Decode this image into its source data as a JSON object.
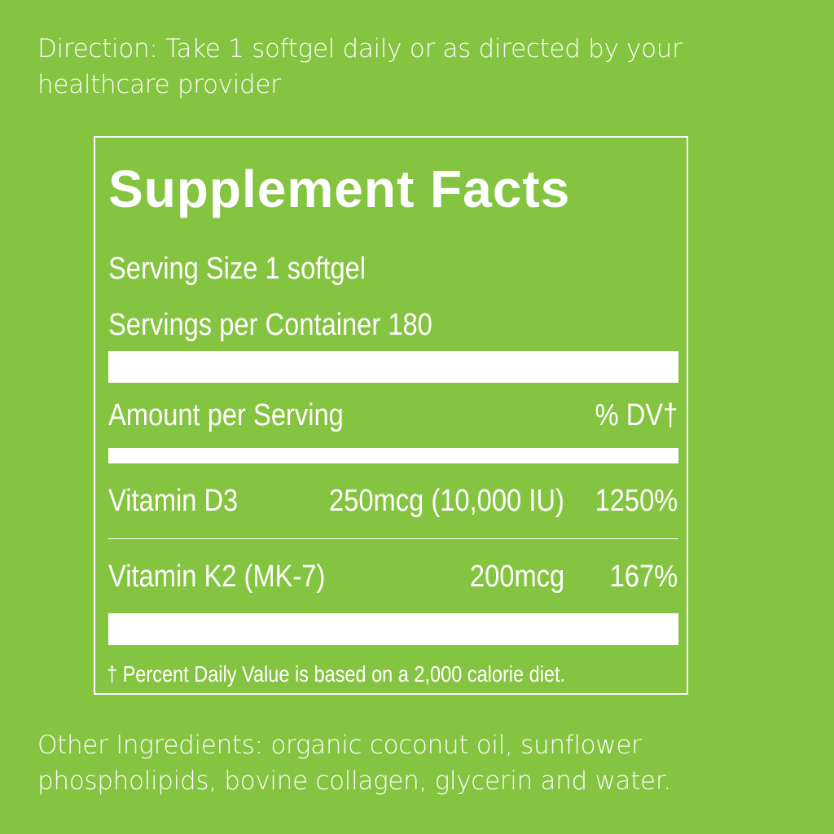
{
  "direction": {
    "line1": "Direction: Take 1 softgel daily or as directed by your",
    "line2": "healthcare provider"
  },
  "facts": {
    "title": "Supplement Facts",
    "serving_size": "Serving Size 1 softgel",
    "servings_per_container": "Servings per Container 180",
    "amount_header": "Amount per Serving",
    "dv_header": "% DV†",
    "rows": [
      {
        "name": "Vitamin D3",
        "amount": "250mcg (10,000 IU)",
        "dv": "1250%"
      },
      {
        "name": "Vitamin K2 (MK-7)",
        "amount": "200mcg",
        "dv": "167%"
      }
    ],
    "footnote": "† Percent Daily Value is based on a 2,000 calorie diet."
  },
  "other_ingredients": {
    "line1": "Other Ingredients: organic coconut oil, sunflower",
    "line2": "phospholipids, bovine collagen, glycerin and water."
  },
  "colors": {
    "background": "#85c441",
    "foreground": "#ffffff"
  }
}
